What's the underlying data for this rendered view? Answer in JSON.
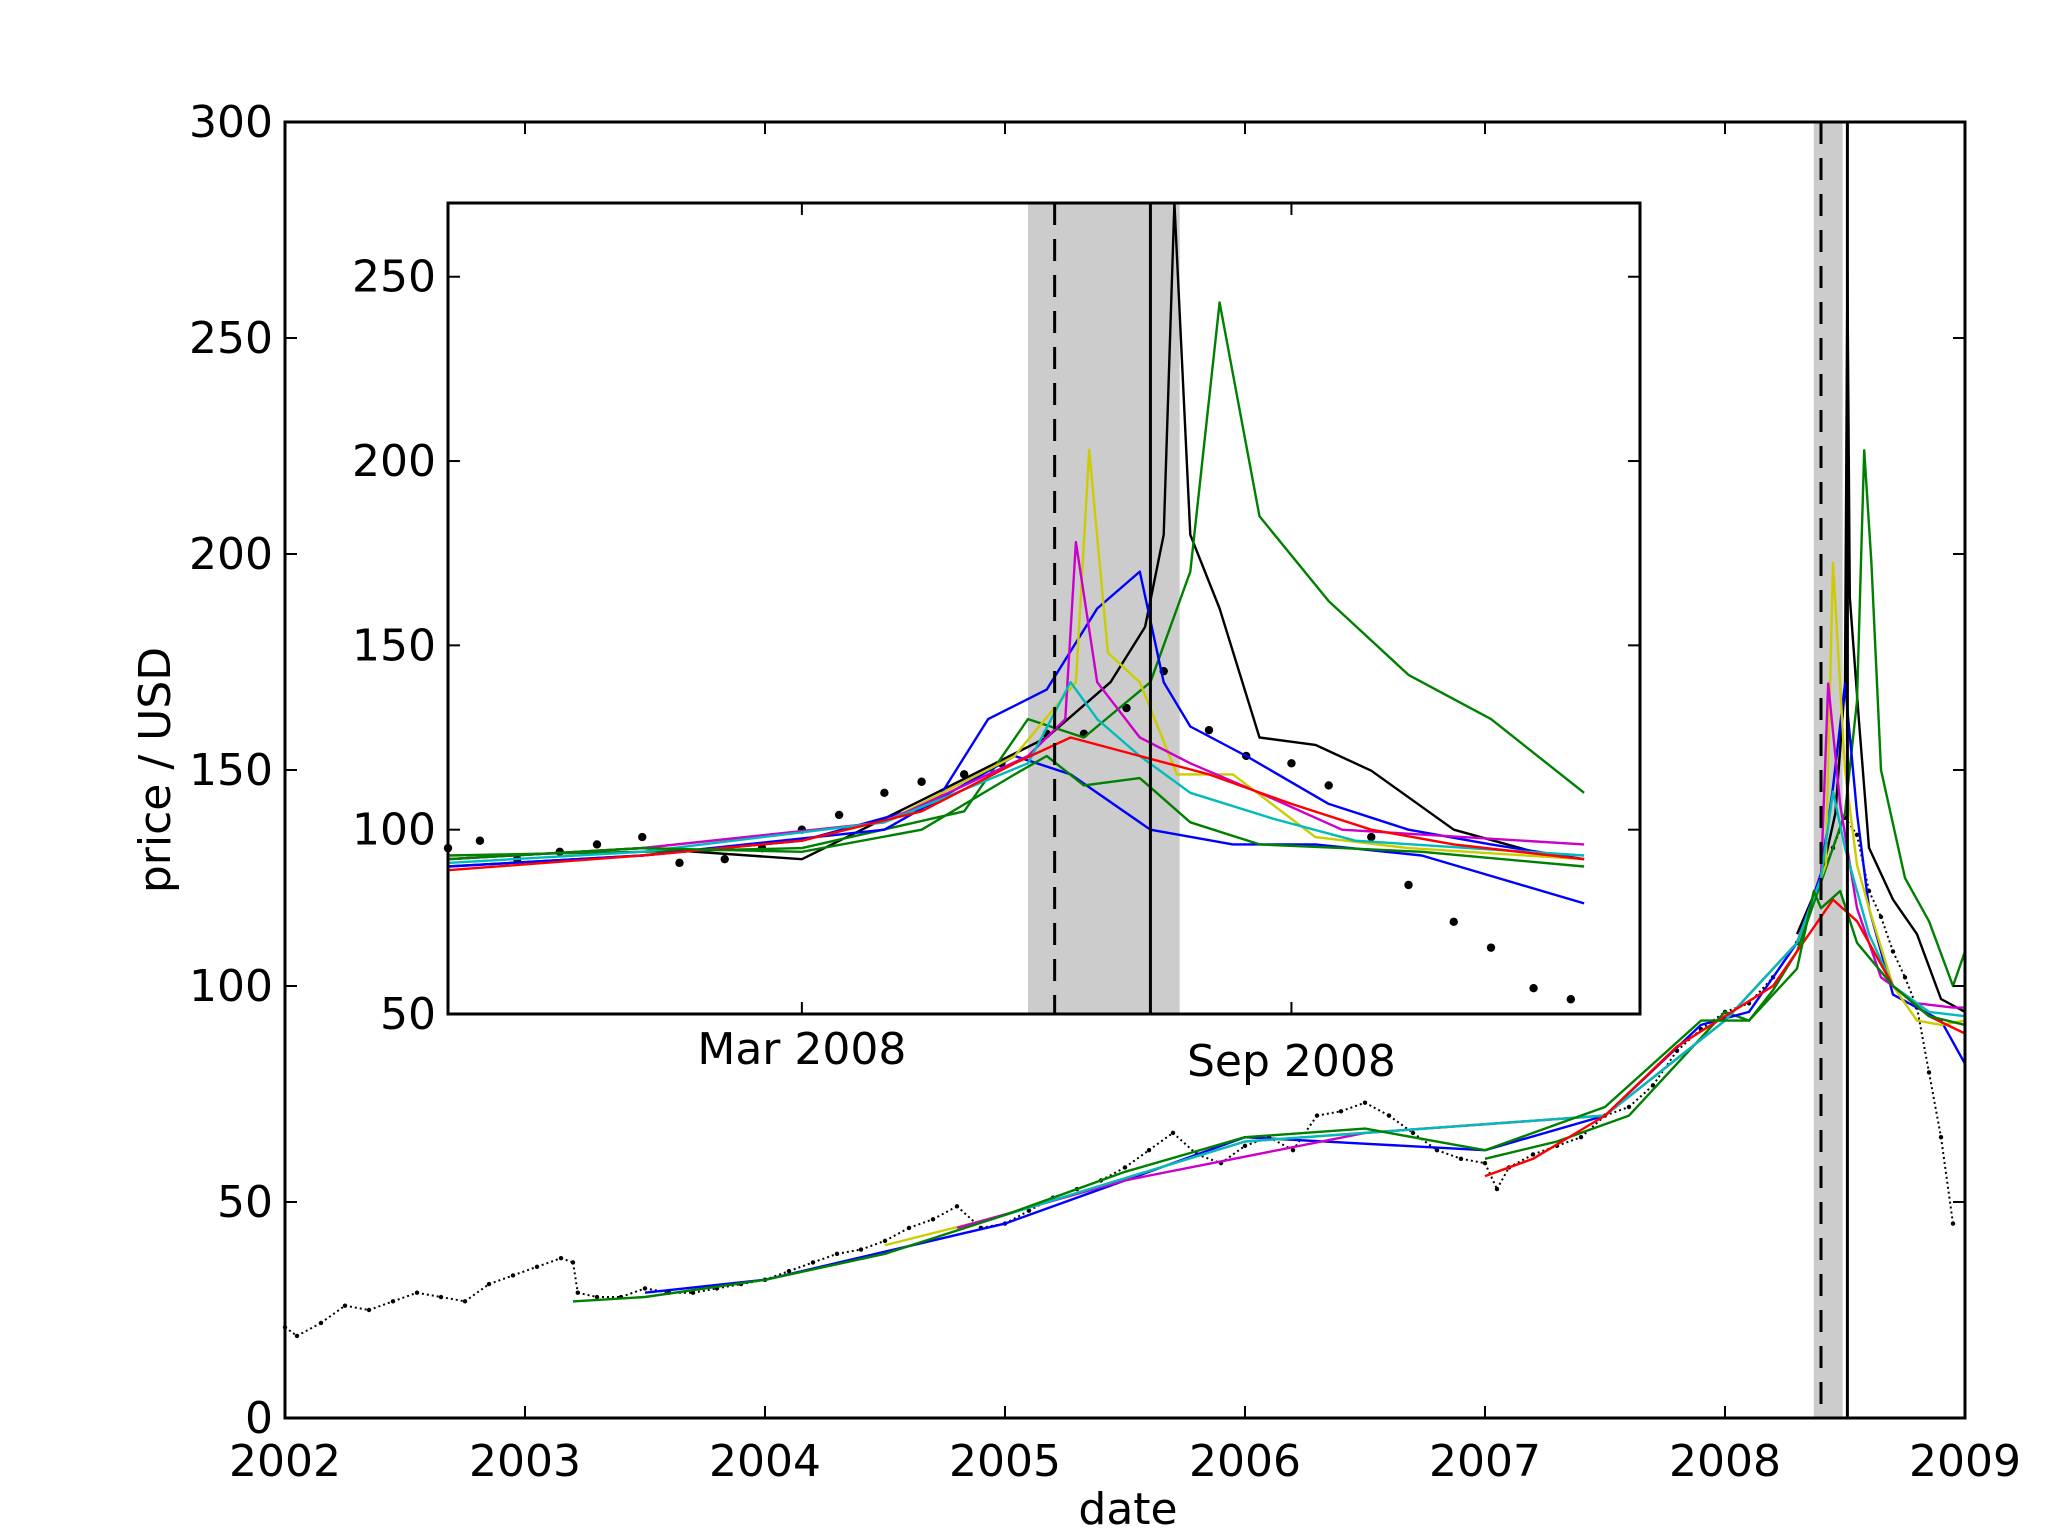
{
  "chart_data": [
    {
      "id": "main",
      "type": "line",
      "title": "",
      "xlabel": "date",
      "ylabel": "price / USD",
      "xlim": [
        2002,
        2009
      ],
      "ylim": [
        0,
        300
      ],
      "xticks": [
        "2002",
        "2003",
        "2004",
        "2005",
        "2006",
        "2007",
        "2008",
        "2009"
      ],
      "yticks": [
        "0",
        "50",
        "100",
        "150",
        "200",
        "250",
        "300"
      ],
      "grid": false,
      "legend": "none",
      "shaded_interval": [
        2008.37,
        2008.49
      ],
      "vline_dashed": 2008.4,
      "vline_solid": 2008.51,
      "observed_price_dots": {
        "x": [
          2002.0,
          2002.05,
          2002.15,
          2002.25,
          2002.35,
          2002.45,
          2002.55,
          2002.65,
          2002.75,
          2002.85,
          2002.95,
          2003.05,
          2003.15,
          2003.2,
          2003.22,
          2003.3,
          2003.4,
          2003.5,
          2003.6,
          2003.7,
          2003.8,
          2003.9,
          2004.0,
          2004.1,
          2004.2,
          2004.3,
          2004.4,
          2004.5,
          2004.6,
          2004.7,
          2004.8,
          2004.9,
          2005.0,
          2005.1,
          2005.2,
          2005.3,
          2005.4,
          2005.5,
          2005.6,
          2005.7,
          2005.8,
          2005.9,
          2006.0,
          2006.1,
          2006.2,
          2006.3,
          2006.4,
          2006.5,
          2006.6,
          2006.7,
          2006.8,
          2006.9,
          2007.0,
          2007.05,
          2007.1,
          2007.2,
          2007.3,
          2007.4,
          2007.5,
          2007.6,
          2007.7,
          2007.8,
          2007.9,
          2008.0,
          2008.1,
          2008.2,
          2008.3,
          2008.4,
          2008.45,
          2008.5,
          2008.55,
          2008.6,
          2008.65,
          2008.7,
          2008.75,
          2008.8,
          2008.85,
          2008.9,
          2008.95
        ],
        "y": [
          21,
          19,
          22,
          26,
          25,
          27,
          29,
          28,
          27,
          31,
          33,
          35,
          37,
          36,
          29,
          28,
          28,
          30,
          29,
          29,
          30,
          31,
          32,
          34,
          36,
          38,
          39,
          41,
          44,
          46,
          49,
          44,
          45,
          48,
          51,
          53,
          55,
          58,
          62,
          66,
          61,
          59,
          63,
          65,
          62,
          70,
          71,
          73,
          70,
          66,
          62,
          60,
          59,
          53,
          58,
          61,
          63,
          65,
          70,
          72,
          77,
          85,
          90,
          94,
          96,
          102,
          110,
          125,
          132,
          139,
          135,
          122,
          116,
          108,
          102,
          95,
          80,
          65,
          45
        ]
      },
      "series": [
        {
          "color": "#000000",
          "x": [
            2008.3,
            2008.4,
            2008.46,
            2008.5,
            2008.51,
            2008.52,
            2008.56,
            2008.6,
            2008.7,
            2008.8,
            2008.9,
            2009.0
          ],
          "y": [
            112,
            125,
            140,
            170,
            265,
            190,
            160,
            132,
            120,
            112,
            97,
            94
          ]
        },
        {
          "color": "#008000",
          "x": [
            2007.0,
            2007.3,
            2007.6,
            2007.9,
            2008.0,
            2008.1,
            2008.2,
            2008.3,
            2008.4,
            2008.5,
            2008.55,
            2008.58,
            2008.61,
            2008.65,
            2008.75,
            2008.85,
            2008.95,
            2009.0
          ],
          "y": [
            60,
            64,
            70,
            88,
            94,
            92,
            99,
            108,
            124,
            140,
            166,
            224,
            198,
            150,
            125,
            115,
            100,
            108
          ]
        },
        {
          "color": "#0000ff",
          "x": [
            2003.5,
            2004.0,
            2005.0,
            2006.0,
            2007.0,
            2007.5,
            2007.9,
            2008.1,
            2008.3,
            2008.4,
            2008.45,
            2008.5,
            2008.55,
            2008.6,
            2008.7,
            2008.8,
            2008.9,
            2009.0
          ],
          "y": [
            29,
            32,
            45,
            65,
            62,
            70,
            91,
            94,
            110,
            126,
            146,
            170,
            140,
            118,
            98,
            95,
            92,
            82
          ]
        },
        {
          "color": "#cccc00",
          "x": [
            2004.5,
            2005.0,
            2006.0,
            2007.5,
            2008.0,
            2008.3,
            2008.42,
            2008.45,
            2008.5,
            2008.55,
            2008.6,
            2008.7,
            2008.8,
            2008.9,
            2009.0
          ],
          "y": [
            40,
            47,
            64,
            70,
            92,
            110,
            128,
            198,
            150,
            128,
            118,
            100,
            92,
            91,
            92
          ]
        },
        {
          "color": "#cc00cc",
          "x": [
            2004.8,
            2005.5,
            2006.5,
            2007.5,
            2008.0,
            2008.3,
            2008.4,
            2008.43,
            2008.48,
            2008.55,
            2008.65,
            2008.8,
            2008.95,
            2009.0
          ],
          "y": [
            44,
            55,
            66,
            70,
            92,
            110,
            125,
            170,
            142,
            118,
            102,
            96,
            95,
            95
          ]
        },
        {
          "color": "#00bbbb",
          "x": [
            2005.0,
            2006.0,
            2007.5,
            2008.0,
            2008.3,
            2008.4,
            2008.45,
            2008.5,
            2008.6,
            2008.7,
            2008.85,
            2009.0
          ],
          "y": [
            47,
            64,
            70,
            92,
            110,
            125,
            145,
            132,
            112,
            100,
            94,
            93
          ]
        },
        {
          "color": "#ff0000",
          "x": [
            2007.0,
            2007.2,
            2007.5,
            2007.8,
            2008.0,
            2008.2,
            2008.35,
            2008.45,
            2008.55,
            2008.7,
            2008.85,
            2009.0
          ],
          "y": [
            56,
            60,
            70,
            86,
            93,
            100,
            112,
            120,
            115,
            100,
            93,
            89
          ]
        },
        {
          "color": "#008000",
          "x": [
            2003.2,
            2003.5,
            2004.0,
            2004.5,
            2005.0,
            2005.5,
            2006.0,
            2006.5,
            2007.0,
            2007.5,
            2007.9,
            2008.1,
            2008.3,
            2008.37,
            2008.4,
            2008.48,
            2008.55,
            2008.7,
            2008.85,
            2009.0
          ],
          "y": [
            27,
            28,
            32,
            38,
            47,
            57,
            65,
            67,
            62,
            72,
            92,
            92,
            104,
            122,
            118,
            122,
            110,
            100,
            93,
            91
          ]
        }
      ]
    },
    {
      "id": "inset",
      "type": "line",
      "title": "",
      "xlabel": "",
      "ylabel": "",
      "xlim": [
        "2007-10-20",
        "2009-01-10"
      ],
      "ylim": [
        50,
        270
      ],
      "xticks": [
        "Mar 2008",
        "Sep 2008"
      ],
      "xtick_dates": [
        "2008-03-01",
        "2008-09-01"
      ],
      "yticks": [
        "50",
        "100",
        "150",
        "200",
        "250"
      ],
      "grid": false,
      "legend": "none",
      "shaded_interval": [
        "2008-05-25",
        "2008-07-21"
      ],
      "vline_dashed": "2008-06-04",
      "vline_solid": "2008-07-10",
      "observed_price_dots": {
        "x": [
          "2007-10-20",
          "2007-11-01",
          "2007-11-15",
          "2007-12-01",
          "2007-12-15",
          "2008-01-01",
          "2008-01-15",
          "2008-02-01",
          "2008-02-15",
          "2008-03-01",
          "2008-03-15",
          "2008-04-01",
          "2008-04-15",
          "2008-05-01",
          "2008-05-15",
          "2008-06-01",
          "2008-06-15",
          "2008-07-01",
          "2008-07-15",
          "2008-08-01",
          "2008-08-15",
          "2008-09-01",
          "2008-09-15",
          "2008-10-01",
          "2008-10-15",
          "2008-11-01",
          "2008-11-15",
          "2008-12-01",
          "2008-12-15"
        ],
        "y": [
          95,
          97,
          92,
          94,
          96,
          98,
          91,
          92,
          95,
          100,
          104,
          110,
          113,
          115,
          118,
          126,
          126,
          133,
          143,
          127,
          120,
          118,
          112,
          98,
          85,
          75,
          68,
          57,
          54
        ]
      },
      "series": [
        {
          "color": "#000000",
          "x": [
            "2007-10-20",
            "2008-01-01",
            "2008-03-01",
            "2008-04-15",
            "2008-06-01",
            "2008-06-25",
            "2008-07-08",
            "2008-07-15",
            "2008-07-19",
            "2008-07-25",
            "2008-08-05",
            "2008-08-20",
            "2008-09-10",
            "2008-10-01",
            "2008-11-01",
            "2008-12-01",
            "2008-12-20"
          ],
          "y": [
            92,
            95,
            92,
            108,
            125,
            140,
            155,
            180,
            270,
            180,
            160,
            125,
            123,
            116,
            100,
            94,
            92
          ]
        },
        {
          "color": "#008000",
          "x": [
            "2007-10-20",
            "2008-01-01",
            "2008-03-01",
            "2008-05-01",
            "2008-05-25",
            "2008-06-15",
            "2008-07-10",
            "2008-07-25",
            "2008-08-05",
            "2008-08-20",
            "2008-09-15",
            "2008-10-15",
            "2008-11-15",
            "2008-12-20"
          ],
          "y": [
            93,
            94,
            95,
            105,
            130,
            125,
            140,
            170,
            243,
            185,
            162,
            142,
            130,
            110
          ]
        },
        {
          "color": "#0000ff",
          "x": [
            "2007-10-20",
            "2008-01-01",
            "2008-03-01",
            "2008-04-20",
            "2008-05-10",
            "2008-06-01",
            "2008-06-20",
            "2008-07-06",
            "2008-07-15",
            "2008-07-25",
            "2008-08-15",
            "2008-09-15",
            "2008-10-15",
            "2008-11-15",
            "2008-12-20"
          ],
          "y": [
            90,
            93,
            97,
            107,
            130,
            138,
            160,
            170,
            140,
            128,
            120,
            107,
            100,
            96,
            92
          ]
        },
        {
          "color": "#0000ff",
          "x": [
            "2007-10-20",
            "2008-01-01",
            "2008-04-01",
            "2008-05-20",
            "2008-06-10",
            "2008-07-10",
            "2008-08-10",
            "2008-09-10",
            "2008-10-20",
            "2008-12-20"
          ],
          "y": [
            90,
            93,
            100,
            120,
            115,
            100,
            96,
            96,
            93,
            80
          ]
        },
        {
          "color": "#cccc00",
          "x": [
            "2007-10-20",
            "2008-01-01",
            "2008-04-01",
            "2008-05-20",
            "2008-06-12",
            "2008-06-17",
            "2008-06-24",
            "2008-07-06",
            "2008-07-20",
            "2008-08-10",
            "2008-09-10",
            "2008-10-15",
            "2008-12-20"
          ],
          "y": [
            92,
            95,
            102,
            120,
            140,
            203,
            148,
            140,
            115,
            115,
            98,
            95,
            92
          ]
        },
        {
          "color": "#cc00cc",
          "x": [
            "2007-10-20",
            "2008-01-01",
            "2008-04-01",
            "2008-05-25",
            "2008-06-08",
            "2008-06-12",
            "2008-06-20",
            "2008-07-06",
            "2008-07-25",
            "2008-08-20",
            "2008-09-20",
            "2008-12-20"
          ],
          "y": [
            92,
            95,
            102,
            120,
            130,
            178,
            140,
            125,
            118,
            110,
            100,
            96
          ]
        },
        {
          "color": "#00bbbb",
          "x": [
            "2007-10-20",
            "2008-01-01",
            "2008-04-01",
            "2008-05-25",
            "2008-06-10",
            "2008-06-20",
            "2008-07-06",
            "2008-07-25",
            "2008-08-25",
            "2008-09-25",
            "2008-12-20"
          ],
          "y": [
            91,
            94,
            102,
            118,
            140,
            130,
            120,
            110,
            103,
            97,
            93
          ]
        },
        {
          "color": "#ff0000",
          "x": [
            "2007-10-20",
            "2008-01-01",
            "2008-03-01",
            "2008-04-15",
            "2008-05-20",
            "2008-06-10",
            "2008-07-06",
            "2008-08-01",
            "2008-09-01",
            "2008-10-01",
            "2008-11-01",
            "2008-12-20"
          ],
          "y": [
            89,
            93,
            97,
            105,
            118,
            125,
            120,
            115,
            107,
            100,
            96,
            92
          ]
        },
        {
          "color": "#008000",
          "x": [
            "2007-10-20",
            "2008-01-01",
            "2008-03-01",
            "2008-04-15",
            "2008-05-20",
            "2008-06-01",
            "2008-06-15",
            "2008-07-06",
            "2008-07-25",
            "2008-08-20",
            "2008-09-20",
            "2008-10-20",
            "2008-12-20"
          ],
          "y": [
            92,
            95,
            94,
            100,
            115,
            120,
            112,
            114,
            102,
            96,
            95,
            94,
            90
          ]
        }
      ]
    }
  ]
}
